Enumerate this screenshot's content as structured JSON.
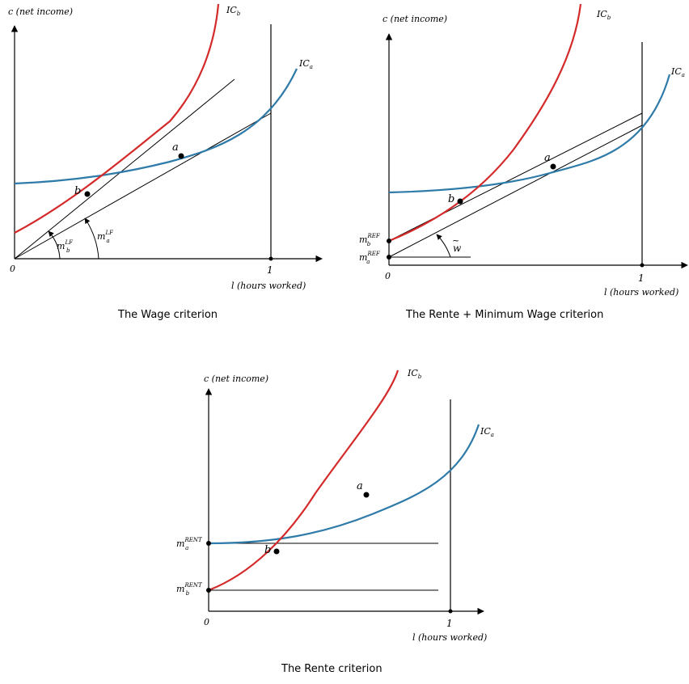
{
  "axis_y_label": "c (net income)",
  "axis_x_label": "l (hours worked)",
  "origin_label": "0",
  "one_label": "1",
  "ic_b": {
    "main": "IC",
    "sub": "b"
  },
  "ic_a": {
    "main": "IC",
    "sub": "a"
  },
  "point_a": "a",
  "point_b": "b",
  "panels": {
    "wage": {
      "caption": "The Wage criterion",
      "slope_b": {
        "main": "m",
        "sub": "b",
        "sup": "LF"
      },
      "slope_a": {
        "main": "m",
        "sub": "a",
        "sup": "LF"
      }
    },
    "rente_min_wage": {
      "caption": "The Rente + Minimum Wage criterion",
      "m_b": {
        "main": "m",
        "sub": "b",
        "sup": "REF"
      },
      "m_a": {
        "main": "m",
        "sub": "a",
        "sup": "REF"
      },
      "w_label": "w",
      "w_tilde": "~"
    },
    "rente": {
      "caption": "The Rente criterion",
      "m_a": {
        "main": "m",
        "sub": "a",
        "sup": "RENT"
      },
      "m_b": {
        "main": "m",
        "sub": "b",
        "sup": "RENT"
      }
    }
  },
  "colors": {
    "ic_b": "#d42a2a",
    "ic_a": "#2e7aa8",
    "axis": "#000000"
  }
}
